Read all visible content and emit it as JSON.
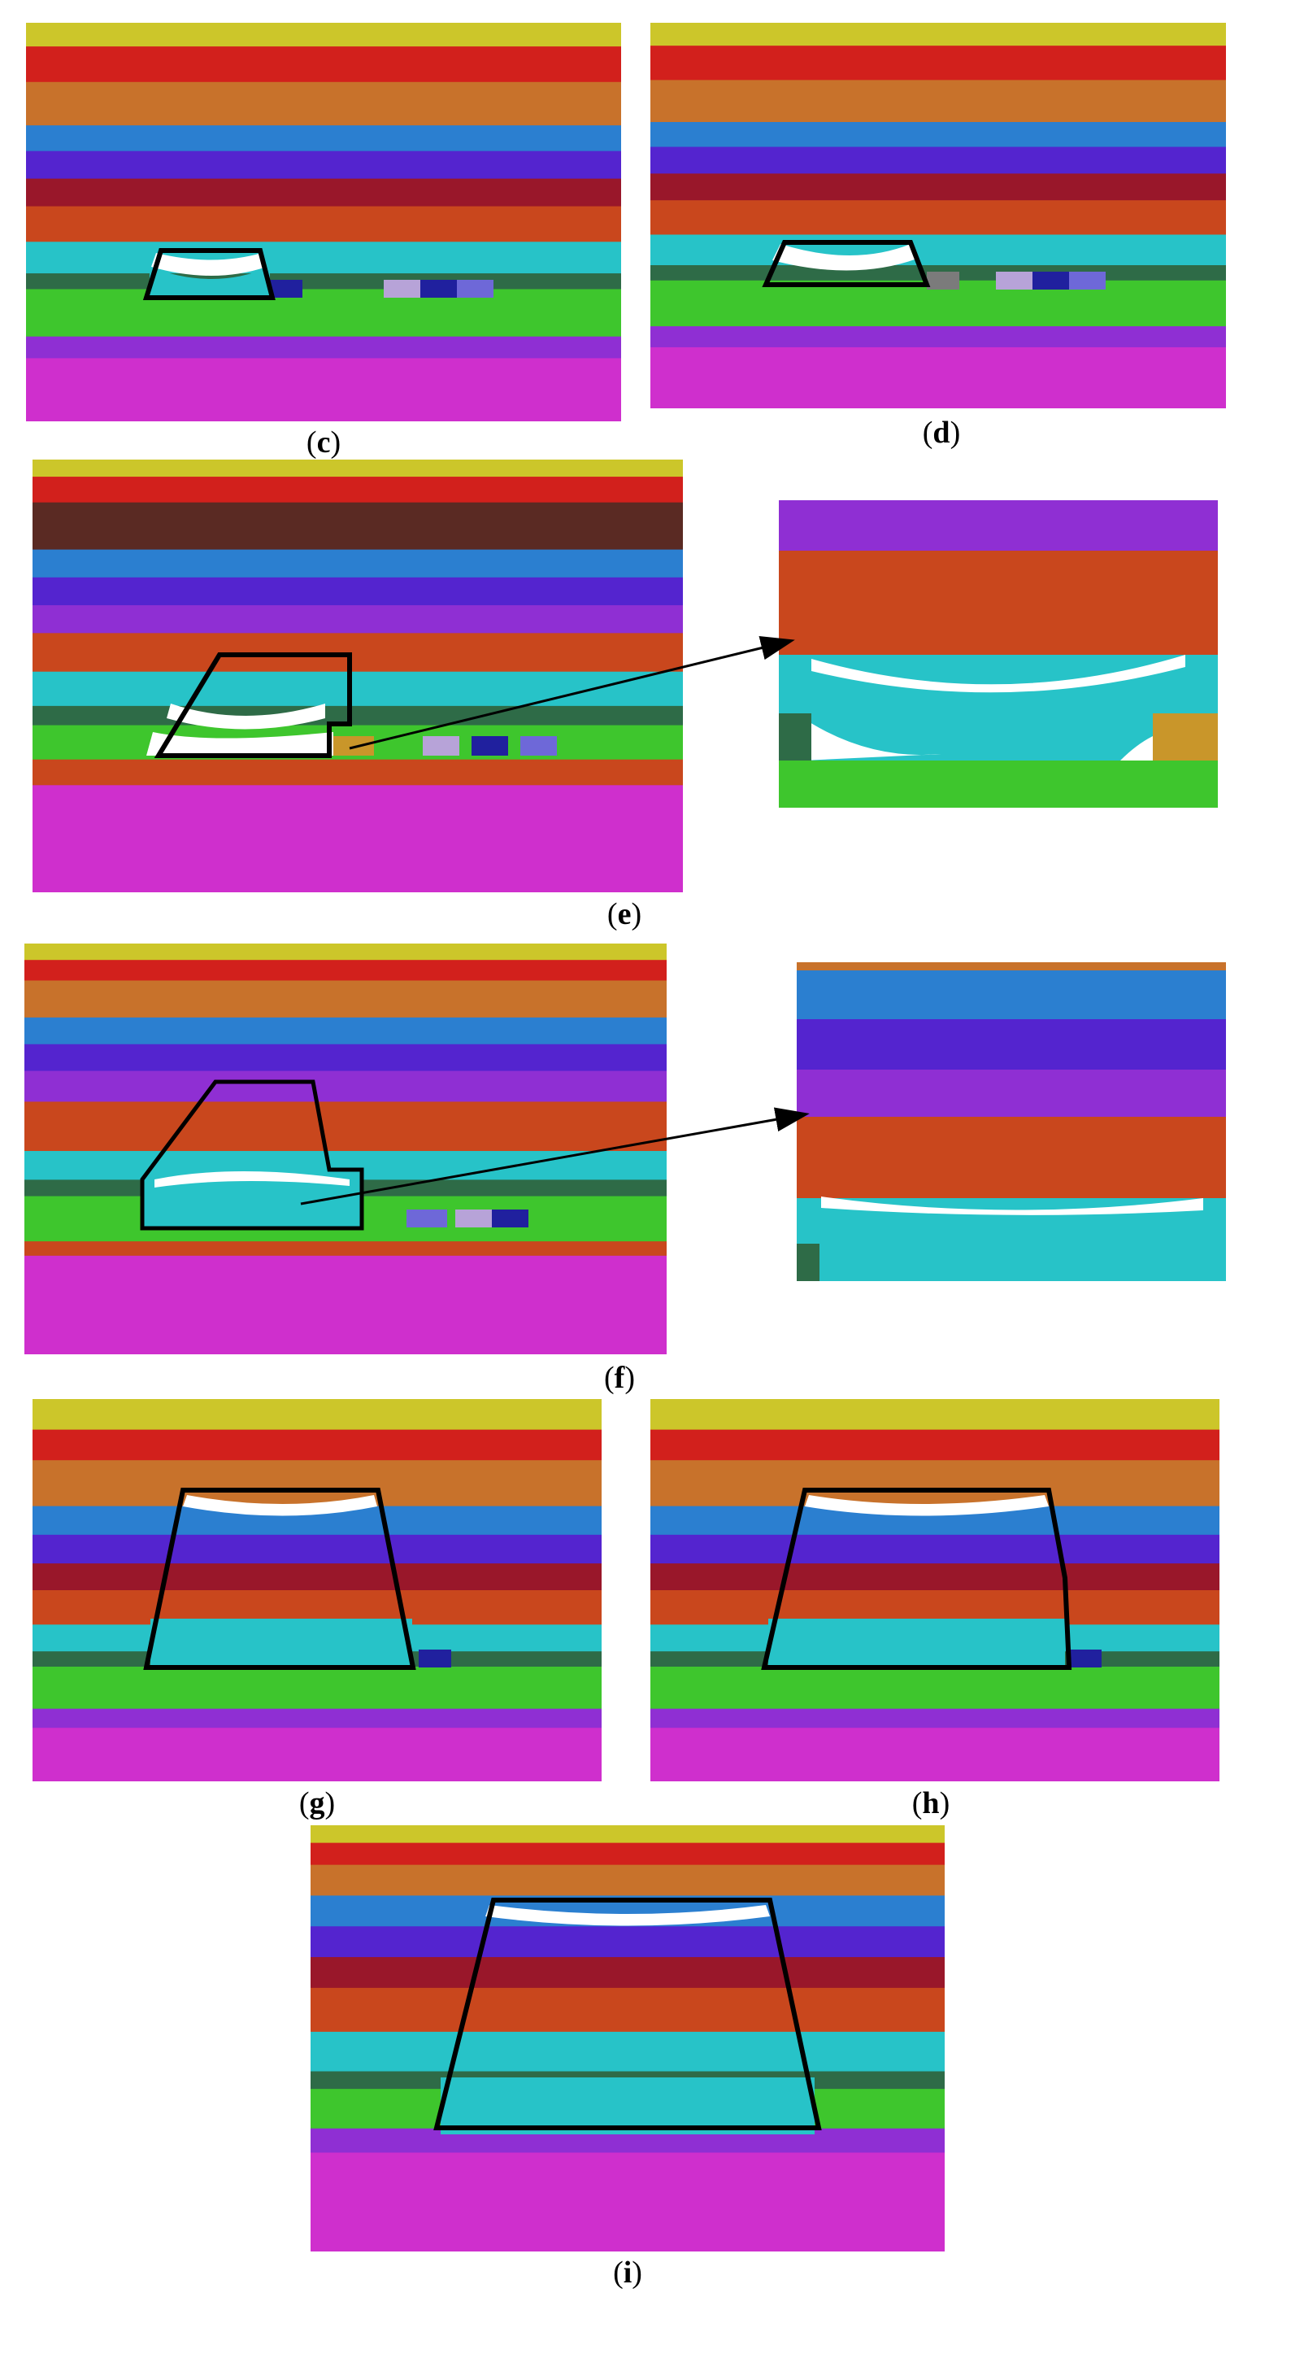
{
  "colors": {
    "yellow": "#ccc62a",
    "red": "#d2201c",
    "orange": "#c8722b",
    "blue": "#2b7fd0",
    "indigo": "#5424cf",
    "violet": "#8f2fd3",
    "maroon": "#99172a",
    "rust": "#c9471d",
    "brown": "#5a2a23",
    "cyan": "#27c3c8",
    "darkgreen": "#2e6b47",
    "green": "#3ec62d",
    "magenta": "#cf2fcd",
    "coalgold": "#c9962a",
    "coalgrey": "#7b7b7b",
    "coallilac": "#b7a3d8",
    "coalnavy": "#20209e",
    "coalperiw": "#6e68d8",
    "void": "#ffffff",
    "outline": "#000000"
  },
  "panels": [
    {
      "id": "c",
      "label": "c"
    },
    {
      "id": "d",
      "label": "d"
    },
    {
      "id": "e",
      "label": "e"
    },
    {
      "id": "f",
      "label": "f"
    },
    {
      "id": "g",
      "label": "g"
    },
    {
      "id": "h",
      "label": "h"
    },
    {
      "id": "i",
      "label": "i"
    }
  ]
}
